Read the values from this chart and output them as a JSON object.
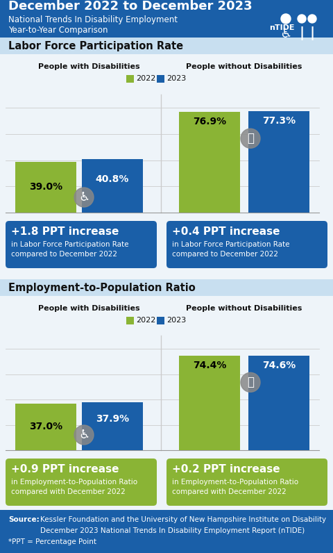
{
  "title_line1": "December 2022 to December 2023",
  "title_line2": "National Trends In Disability Employment",
  "title_line3": "Year-to-Year Comparison",
  "header_bg": "#1a5fa8",
  "section1_label": "Labor Force Participation Rate",
  "section2_label": "Employment-to-Population Ratio",
  "section_bg": "#c8dff0",
  "left_label": "People with Disabilities",
  "right_label": "People without Disabilities",
  "legend_2022": "2022",
  "legend_2023": "2023",
  "color_2022": "#8ab435",
  "color_2023": "#1a5fa8",
  "lfpr_dis_2022": 39.0,
  "lfpr_dis_2023": 40.8,
  "lfpr_nodis_2022": 76.9,
  "lfpr_nodis_2023": 77.3,
  "epop_dis_2022": 37.0,
  "epop_dis_2023": 37.9,
  "epop_nodis_2022": 74.4,
  "epop_nodis_2023": 74.6,
  "lfpr_dis_change": "+1.8 PPT increase",
  "lfpr_dis_change_sub": "in Labor Force Participation Rate\ncompared to December 2022",
  "lfpr_nodis_change": "+0.4 PPT increase",
  "lfpr_nodis_change_sub": "in Labor Force Participation Rate\ncompared to December 2022",
  "epop_dis_change": "+0.9 PPT increase",
  "epop_dis_change_sub": "in Employment-to-Population Ratio\ncompared with December 2022",
  "epop_nodis_change": "+0.2 PPT increase",
  "epop_nodis_change_sub": "in Employment-to-Population Ratio\ncompared with December 2022",
  "source_bold": "Source:",
  "source_line1": "  Kessler Foundation and the University of New Hampshire Institute on Disability",
  "source_line2": "December 2023 National Trends In Disability Employment Report (nTIDE)",
  "ppt_text": "*PPT = Percentage Point",
  "green_box_bg": "#8ab435",
  "blue_box_bg": "#1a5fa8",
  "light_bg": "#eef4f9"
}
